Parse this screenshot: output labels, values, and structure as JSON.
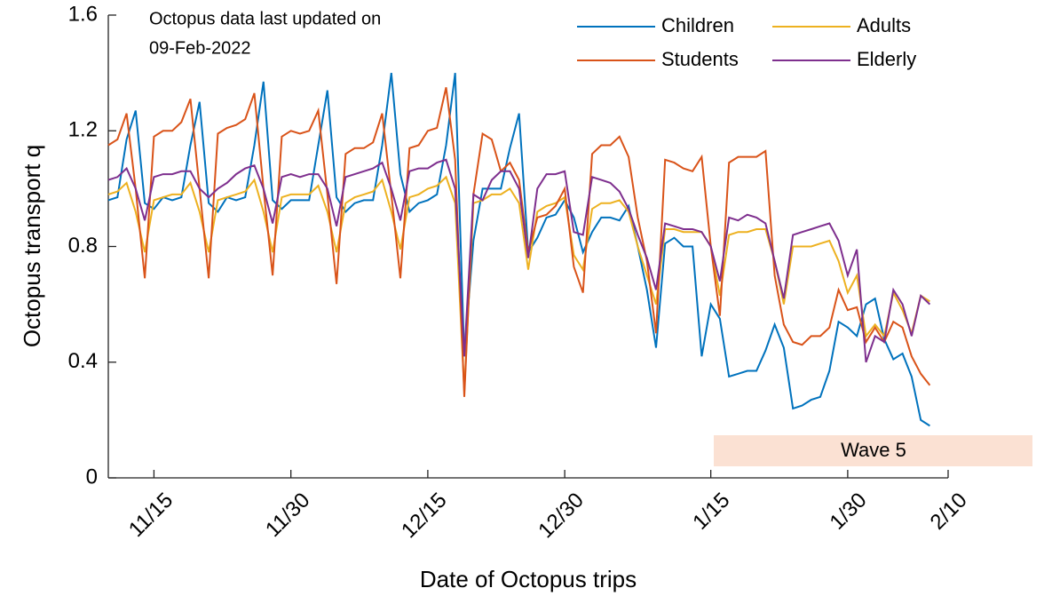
{
  "chart_data": {
    "type": "line",
    "annotation": [
      "Octopus data last updated on",
      "09-Feb-2022"
    ],
    "xlabel": "Date of Octopus trips",
    "ylabel": "Octopus transport q",
    "wave_label": "Wave 5",
    "x": [
      "11/10",
      "11/11",
      "11/12",
      "11/13",
      "11/14",
      "11/15",
      "11/16",
      "11/17",
      "11/18",
      "11/19",
      "11/20",
      "11/21",
      "11/22",
      "11/23",
      "11/24",
      "11/25",
      "11/26",
      "11/27",
      "11/28",
      "11/29",
      "11/30",
      "12/1",
      "12/2",
      "12/3",
      "12/4",
      "12/5",
      "12/6",
      "12/7",
      "12/8",
      "12/9",
      "12/10",
      "12/11",
      "12/12",
      "12/13",
      "12/14",
      "12/15",
      "12/16",
      "12/17",
      "12/18",
      "12/19",
      "12/20",
      "12/21",
      "12/22",
      "12/23",
      "12/24",
      "12/25",
      "12/26",
      "12/27",
      "12/28",
      "12/29",
      "12/30",
      "12/31",
      "1/1",
      "1/2",
      "1/3",
      "1/4",
      "1/5",
      "1/6",
      "1/7",
      "1/8",
      "1/9",
      "1/10",
      "1/11",
      "1/12",
      "1/13",
      "1/14",
      "1/15",
      "1/16",
      "1/17",
      "1/18",
      "1/19",
      "1/20",
      "1/21",
      "1/22",
      "1/23",
      "1/24",
      "1/25",
      "1/26",
      "1/27",
      "1/28",
      "1/29",
      "1/30",
      "1/31",
      "2/1",
      "2/2",
      "2/3",
      "2/4",
      "2/5",
      "2/6",
      "2/7",
      "2/8"
    ],
    "series": [
      {
        "name": "Children",
        "color": "#0072BD",
        "values": [
          0.96,
          0.97,
          1.17,
          1.27,
          0.95,
          0.93,
          0.97,
          0.96,
          0.97,
          1.15,
          1.3,
          0.95,
          0.92,
          0.97,
          0.96,
          0.97,
          1.15,
          1.37,
          0.96,
          0.93,
          0.96,
          0.96,
          0.96,
          1.15,
          1.34,
          0.97,
          0.92,
          0.95,
          0.96,
          0.96,
          1.15,
          1.4,
          1.05,
          0.92,
          0.95,
          0.96,
          0.98,
          1.15,
          1.4,
          0.42,
          0.82,
          1.0,
          1.0,
          1.0,
          1.14,
          1.26,
          0.78,
          0.83,
          0.9,
          0.91,
          0.96,
          0.9,
          0.78,
          0.85,
          0.9,
          0.9,
          0.89,
          0.94,
          0.8,
          0.65,
          0.45,
          0.81,
          0.83,
          0.8,
          0.8,
          0.42,
          0.6,
          0.55,
          0.35,
          0.36,
          0.37,
          0.37,
          0.44,
          0.53,
          0.45,
          0.24,
          0.25,
          0.27,
          0.28,
          0.37,
          0.54,
          0.52,
          0.49,
          0.6,
          0.62,
          0.48,
          0.41,
          0.43,
          0.35,
          0.2,
          0.18
        ]
      },
      {
        "name": "Adults",
        "color": "#EDB120",
        "values": [
          0.98,
          0.99,
          1.02,
          0.92,
          0.78,
          0.96,
          0.97,
          0.98,
          0.98,
          1.02,
          0.92,
          0.78,
          0.96,
          0.97,
          0.98,
          0.99,
          1.03,
          0.92,
          0.78,
          0.97,
          0.98,
          0.98,
          0.98,
          1.01,
          0.92,
          0.78,
          0.95,
          0.97,
          0.98,
          0.99,
          1.03,
          0.92,
          0.79,
          0.97,
          0.98,
          1.0,
          1.01,
          1.04,
          0.95,
          0.3,
          0.95,
          0.96,
          0.98,
          0.98,
          1.0,
          0.95,
          0.72,
          0.92,
          0.94,
          0.95,
          0.97,
          0.77,
          0.72,
          0.93,
          0.95,
          0.95,
          0.96,
          0.92,
          0.8,
          0.7,
          0.6,
          0.86,
          0.86,
          0.85,
          0.85,
          0.85,
          0.8,
          0.63,
          0.84,
          0.85,
          0.85,
          0.86,
          0.86,
          0.75,
          0.6,
          0.8,
          0.8,
          0.8,
          0.81,
          0.82,
          0.75,
          0.64,
          0.7,
          0.49,
          0.53,
          0.49,
          0.64,
          0.58,
          0.5,
          0.63,
          0.61
        ]
      },
      {
        "name": "Students",
        "color": "#D95319",
        "values": [
          1.15,
          1.17,
          1.26,
          1.0,
          0.69,
          1.18,
          1.2,
          1.2,
          1.23,
          1.31,
          1.0,
          0.69,
          1.19,
          1.21,
          1.22,
          1.24,
          1.33,
          1.0,
          0.7,
          1.18,
          1.2,
          1.19,
          1.2,
          1.27,
          0.98,
          0.67,
          1.12,
          1.14,
          1.14,
          1.16,
          1.26,
          0.98,
          0.69,
          1.14,
          1.15,
          1.2,
          1.21,
          1.35,
          1.1,
          0.28,
          0.98,
          1.19,
          1.17,
          1.06,
          1.09,
          1.03,
          0.78,
          0.9,
          0.91,
          0.94,
          1.0,
          0.73,
          0.64,
          1.12,
          1.15,
          1.15,
          1.18,
          1.11,
          0.9,
          0.75,
          0.5,
          1.1,
          1.09,
          1.07,
          1.06,
          1.11,
          0.8,
          0.56,
          1.09,
          1.11,
          1.11,
          1.11,
          1.13,
          0.7,
          0.53,
          0.47,
          0.46,
          0.49,
          0.49,
          0.52,
          0.65,
          0.58,
          0.59,
          0.47,
          0.52,
          0.47,
          0.54,
          0.52,
          0.42,
          0.36,
          0.32
        ]
      },
      {
        "name": "Elderly",
        "color": "#7E2F8E",
        "values": [
          1.03,
          1.04,
          1.07,
          1.0,
          0.89,
          1.04,
          1.05,
          1.05,
          1.06,
          1.06,
          1.0,
          0.97,
          1.0,
          1.02,
          1.05,
          1.07,
          1.08,
          1.0,
          0.88,
          1.04,
          1.05,
          1.04,
          1.05,
          1.05,
          1.0,
          0.87,
          1.04,
          1.05,
          1.06,
          1.07,
          1.09,
          1.0,
          0.89,
          1.06,
          1.07,
          1.07,
          1.09,
          1.1,
          1.0,
          0.42,
          0.98,
          0.96,
          1.03,
          1.06,
          1.06,
          1.0,
          0.76,
          1.0,
          1.05,
          1.05,
          1.06,
          0.85,
          0.84,
          1.04,
          1.03,
          1.02,
          0.99,
          0.93,
          0.84,
          0.76,
          0.65,
          0.88,
          0.87,
          0.86,
          0.86,
          0.85,
          0.8,
          0.68,
          0.9,
          0.89,
          0.91,
          0.9,
          0.88,
          0.75,
          0.62,
          0.84,
          0.85,
          0.86,
          0.87,
          0.88,
          0.82,
          0.7,
          0.79,
          0.4,
          0.49,
          0.47,
          0.65,
          0.6,
          0.49,
          0.63,
          0.6
        ]
      }
    ],
    "xlim": [
      "11/10",
      "2/10"
    ],
    "xticks": [
      "11/15",
      "11/30",
      "12/15",
      "12/30",
      "1/15",
      "1/30",
      "2/10"
    ],
    "ylim": [
      0,
      1.6
    ],
    "yticks": [
      0,
      0.4,
      0.8,
      1.2,
      1.6
    ],
    "legend": "top-right"
  }
}
